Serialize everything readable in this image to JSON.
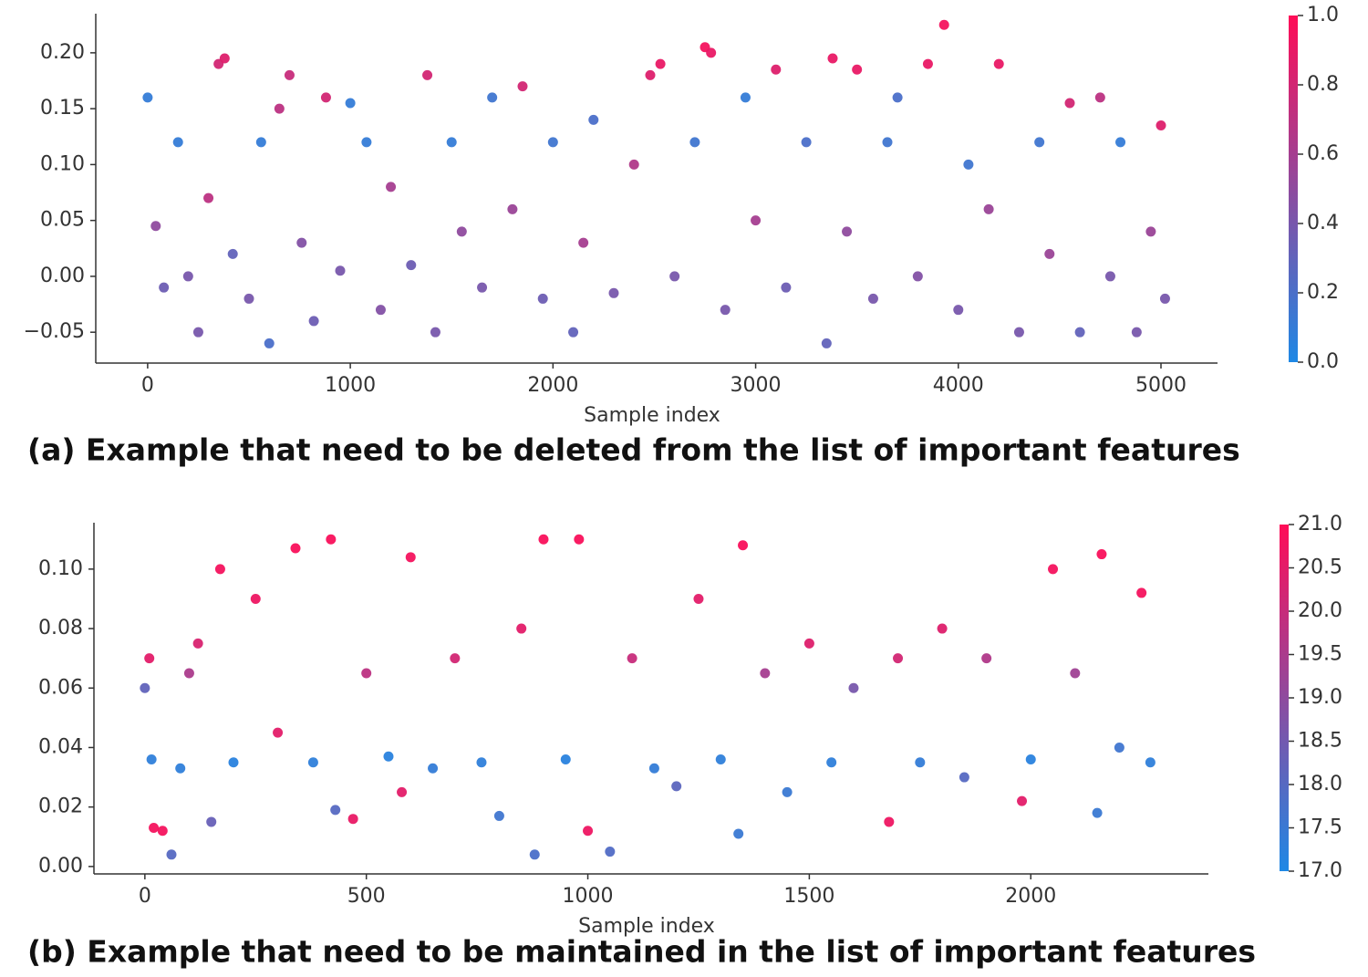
{
  "chart_data": [
    {
      "type": "scatter",
      "caption": "(a) Example that need to be deleted from the list of important features",
      "xlabel": "Sample index",
      "xlim": [
        -256,
        5279
      ],
      "ylim": [
        -0.0776,
        0.235
      ],
      "xticks": [
        0,
        1000,
        2000,
        3000,
        4000,
        5000
      ],
      "yticks": [
        {
          "value": -0.05,
          "label": "−0.05"
        },
        {
          "value": 0,
          "label": "0.00"
        },
        {
          "value": 0.05,
          "label": "0.05"
        },
        {
          "value": 0.1,
          "label": "0.10"
        },
        {
          "value": 0.15,
          "label": "0.15"
        },
        {
          "value": 0.2,
          "label": "0.20"
        }
      ],
      "colormap": [
        "#1E88E5",
        "#FF0D57"
      ],
      "clim": [
        0,
        1
      ],
      "cticks": [
        {
          "value": 0,
          "label": "0.0"
        },
        0.2,
        0.4,
        0.6,
        0.8,
        {
          "value": 1,
          "label": "1.0"
        }
      ],
      "x": [
        0,
        40,
        80,
        150,
        200,
        250,
        300,
        350,
        380,
        420,
        500,
        560,
        600,
        650,
        700,
        760,
        820,
        880,
        950,
        1000,
        1080,
        1150,
        1200,
        1300,
        1380,
        1420,
        1500,
        1550,
        1650,
        1700,
        1800,
        1850,
        1950,
        2000,
        2100,
        2150,
        2200,
        2300,
        2400,
        2480,
        2530,
        2600,
        2700,
        2750,
        2780,
        2850,
        2950,
        3000,
        3100,
        3150,
        3250,
        3350,
        3380,
        3450,
        3500,
        3580,
        3650,
        3700,
        3800,
        3850,
        3930,
        4000,
        4050,
        4150,
        4200,
        4300,
        4400,
        4450,
        4550,
        4600,
        4700,
        4750,
        4800,
        4880,
        4950,
        5000,
        5020
      ],
      "values": [
        0.16,
        0.045,
        -0.01,
        0.12,
        0.0,
        -0.05,
        0.07,
        0.19,
        0.195,
        0.02,
        -0.02,
        0.12,
        -0.06,
        0.15,
        0.18,
        0.03,
        -0.04,
        0.16,
        0.005,
        0.155,
        0.12,
        -0.03,
        0.08,
        0.01,
        0.18,
        -0.05,
        0.12,
        0.04,
        -0.01,
        0.16,
        0.06,
        0.17,
        -0.02,
        0.12,
        -0.05,
        0.03,
        0.14,
        -0.015,
        0.1,
        0.18,
        0.19,
        0.0,
        0.12,
        0.205,
        0.2,
        -0.03,
        0.16,
        0.05,
        0.185,
        -0.01,
        0.12,
        -0.06,
        0.195,
        0.04,
        0.185,
        -0.02,
        0.12,
        0.16,
        0.0,
        0.19,
        0.225,
        -0.03,
        0.1,
        0.06,
        0.19,
        -0.05,
        0.12,
        0.02,
        0.155,
        -0.05,
        0.16,
        0.0,
        0.12,
        -0.05,
        0.04,
        0.135,
        -0.02
      ],
      "c": [
        0.1,
        0.5,
        0.35,
        0.1,
        0.4,
        0.4,
        0.7,
        0.8,
        0.85,
        0.3,
        0.4,
        0.1,
        0.2,
        0.7,
        0.75,
        0.45,
        0.35,
        0.8,
        0.4,
        0.1,
        0.1,
        0.45,
        0.6,
        0.35,
        0.8,
        0.4,
        0.1,
        0.5,
        0.4,
        0.15,
        0.55,
        0.8,
        0.35,
        0.15,
        0.3,
        0.6,
        0.2,
        0.4,
        0.65,
        0.85,
        0.9,
        0.4,
        0.15,
        0.95,
        0.9,
        0.4,
        0.1,
        0.6,
        0.85,
        0.35,
        0.2,
        0.3,
        0.9,
        0.5,
        0.9,
        0.4,
        0.15,
        0.2,
        0.45,
        0.9,
        0.95,
        0.4,
        0.15,
        0.55,
        0.9,
        0.4,
        0.15,
        0.55,
        0.8,
        0.3,
        0.7,
        0.4,
        0.1,
        0.4,
        0.55,
        0.85,
        0.4
      ]
    },
    {
      "type": "scatter",
      "caption": "(b) Example that need to be maintained in the list of important features",
      "xlabel": "Sample index",
      "xlim": [
        -115,
        2401
      ],
      "ylim": [
        -0.0025,
        0.1156
      ],
      "xticks": [
        0,
        500,
        1000,
        1500,
        2000
      ],
      "yticks": [
        {
          "value": 0,
          "label": "0.00"
        },
        {
          "value": 0.02,
          "label": "0.02"
        },
        {
          "value": 0.04,
          "label": "0.04"
        },
        {
          "value": 0.06,
          "label": "0.06"
        },
        {
          "value": 0.08,
          "label": "0.08"
        },
        {
          "value": 0.1,
          "label": "0.10"
        }
      ],
      "colormap": [
        "#1E88E5",
        "#FF0D57"
      ],
      "clim": [
        17,
        21
      ],
      "cticks": [
        {
          "value": 17,
          "label": "17.0"
        },
        17.5,
        {
          "value": 18,
          "label": "18.0"
        },
        18.5,
        {
          "value": 19,
          "label": "19.0"
        },
        19.5,
        {
          "value": 20,
          "label": "20.0"
        },
        20.5,
        {
          "value": 21,
          "label": "21.0"
        }
      ],
      "x": [
        0,
        10,
        15,
        20,
        40,
        60,
        80,
        100,
        120,
        150,
        170,
        200,
        250,
        300,
        340,
        380,
        420,
        430,
        470,
        500,
        550,
        580,
        600,
        650,
        700,
        760,
        800,
        850,
        880,
        900,
        950,
        980,
        1000,
        1050,
        1100,
        1150,
        1200,
        1250,
        1300,
        1340,
        1350,
        1400,
        1450,
        1500,
        1550,
        1600,
        1680,
        1700,
        1750,
        1800,
        1850,
        1900,
        1980,
        2000,
        2050,
        2100,
        2150,
        2160,
        2200,
        2250,
        2270
      ],
      "values": [
        0.06,
        0.07,
        0.036,
        0.013,
        0.012,
        0.004,
        0.033,
        0.065,
        0.075,
        0.015,
        0.1,
        0.035,
        0.09,
        0.045,
        0.107,
        0.035,
        0.11,
        0.019,
        0.016,
        0.065,
        0.037,
        0.025,
        0.104,
        0.033,
        0.07,
        0.035,
        0.017,
        0.08,
        0.004,
        0.11,
        0.036,
        0.11,
        0.012,
        0.005,
        0.07,
        0.033,
        0.027,
        0.09,
        0.036,
        0.011,
        0.108,
        0.065,
        0.025,
        0.075,
        0.035,
        0.06,
        0.015,
        0.07,
        0.035,
        0.08,
        0.03,
        0.07,
        0.022,
        0.036,
        0.1,
        0.065,
        0.018,
        0.105,
        0.04,
        0.092,
        0.035
      ],
      "c": [
        18.2,
        20.5,
        17.3,
        20.8,
        20.8,
        18.0,
        17.3,
        19.5,
        20.3,
        18.3,
        20.8,
        17.2,
        20.7,
        20.5,
        20.9,
        17.3,
        20.9,
        18.0,
        20.6,
        19.8,
        17.2,
        20.5,
        20.8,
        17.4,
        20.2,
        17.3,
        17.6,
        20.5,
        17.8,
        20.9,
        17.2,
        20.9,
        20.7,
        17.9,
        20.0,
        17.4,
        18.1,
        20.5,
        17.3,
        17.5,
        20.9,
        19.4,
        17.5,
        20.4,
        17.3,
        18.6,
        20.7,
        20.2,
        17.4,
        20.4,
        18.0,
        19.6,
        20.5,
        17.2,
        20.8,
        19.3,
        17.5,
        20.9,
        17.6,
        20.8,
        17.3
      ]
    }
  ]
}
